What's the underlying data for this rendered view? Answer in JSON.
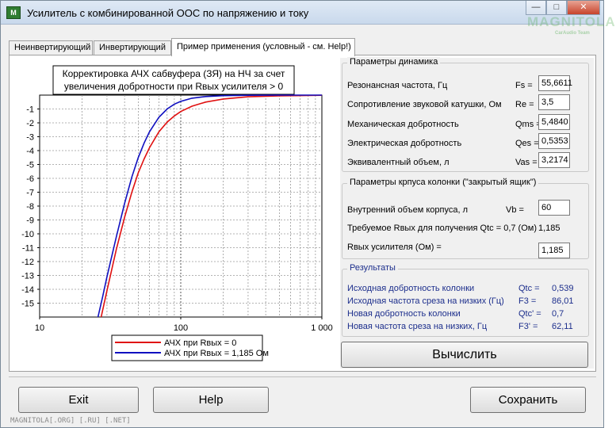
{
  "window": {
    "title": "Усилитель с комбинированной ООС по напряжению и току",
    "icon": "app-logo-icon",
    "watermark": "MAGNITOLA",
    "watermark_sub": "CarAudio Team"
  },
  "tabs": [
    {
      "label": "Неинвертирующий",
      "active": false
    },
    {
      "label": "Инвертирующий",
      "active": false
    },
    {
      "label": "Пример применения (условный - см. Help!)",
      "active": true
    }
  ],
  "chart_data": {
    "type": "line",
    "title": "Корректировка АЧХ сабвуфера (ЗЯ) на НЧ за счет увеличения добротности при Rвых усилителя > 0",
    "title_lines": [
      "Корректировка АЧХ сабвуфера (ЗЯ) на НЧ за счет",
      "увеличения добротности при Rвых усилителя > 0"
    ],
    "x_scale": "log",
    "xlim": [
      10,
      1000
    ],
    "x_ticks": [
      "10",
      "100",
      "1 000"
    ],
    "ylim": [
      -16,
      0
    ],
    "y_ticks": [
      "-1",
      "-2",
      "-3",
      "-4",
      "-5",
      "-6",
      "-7",
      "-8",
      "-9",
      "-10",
      "-11",
      "-12",
      "-13",
      "-14",
      "-15"
    ],
    "grid": true,
    "legend_position": "bottom",
    "series": [
      {
        "name": "АЧХ при Rвых = 0",
        "color": "#e01010",
        "x": [
          27.3,
          30,
          35,
          40,
          45,
          50,
          55,
          60,
          70,
          80,
          90,
          100,
          120,
          150,
          200,
          300,
          500,
          1000
        ],
        "y": [
          -16.0,
          -14.1,
          -11.1,
          -8.8,
          -7.0,
          -5.6,
          -4.6,
          -3.8,
          -2.65,
          -1.95,
          -1.5,
          -1.18,
          -0.8,
          -0.5,
          -0.28,
          -0.12,
          -0.05,
          -0.01
        ]
      },
      {
        "name": "АЧХ при Rвых = 1,185  Ом",
        "color": "#1010c0",
        "x": [
          25.9,
          28,
          30,
          35,
          40,
          45,
          50,
          55,
          60,
          70,
          80,
          90,
          100,
          120,
          150,
          200,
          300,
          500,
          1000
        ],
        "y": [
          -16.0,
          -14.5,
          -13.1,
          -10.2,
          -7.8,
          -5.9,
          -4.5,
          -3.45,
          -2.65,
          -1.6,
          -1.0,
          -0.65,
          -0.45,
          -0.22,
          -0.1,
          -0.04,
          -0.01,
          0.0,
          0.0
        ]
      }
    ]
  },
  "speaker": {
    "group_title": "Параметры динамика",
    "rows": [
      {
        "label": "Резонансная частота, Гц",
        "symbol": "Fs =",
        "value": "55,6611"
      },
      {
        "label": "Сопротивление звуковой катушки, Ом",
        "symbol": "Re =",
        "value": "3,5"
      },
      {
        "label": "Механическая добротность",
        "symbol": "Qms =",
        "value": "5,4840"
      },
      {
        "label": "Электрическая добротность",
        "symbol": "Qes =",
        "value": "0,5353"
      },
      {
        "label": "Эквивалентный объем, л",
        "symbol": "Vas =",
        "value": "3,2174"
      }
    ]
  },
  "box": {
    "group_title": "Параметры крпуса колонки (\"закрытый ящик\")",
    "volume_label": "Внутренний объем корпуса, л",
    "volume_symbol": "Vb =",
    "volume_value": "60",
    "required_label": "Требуемое Rвых для получения Qtc = 0,7 (Ом)",
    "required_value": "1,185",
    "rout_label": "Rвых усилителя (Ом) =",
    "rout_value": "1,185"
  },
  "results": {
    "group_title": "Результаты",
    "rows": [
      {
        "label": "Исходная добротность колонки",
        "symbol": "Qtc =",
        "value": "0,539"
      },
      {
        "label": "Исходная частота среза на низких (Гц)",
        "symbol": "F3 =",
        "value": "86,01"
      },
      {
        "label": "Новая добротность колонки",
        "symbol": "Qtc' =",
        "value": "0,7"
      },
      {
        "label": "Новая частота среза на низких, Гц",
        "symbol": "F3' =",
        "value": "62,11"
      }
    ]
  },
  "buttons": {
    "calculate": "Вычислить",
    "exit": "Exit",
    "help": "Help",
    "save": "Сохранить"
  },
  "status_text": "MAGNITOLA[.ORG] [.RU] [.NET]"
}
